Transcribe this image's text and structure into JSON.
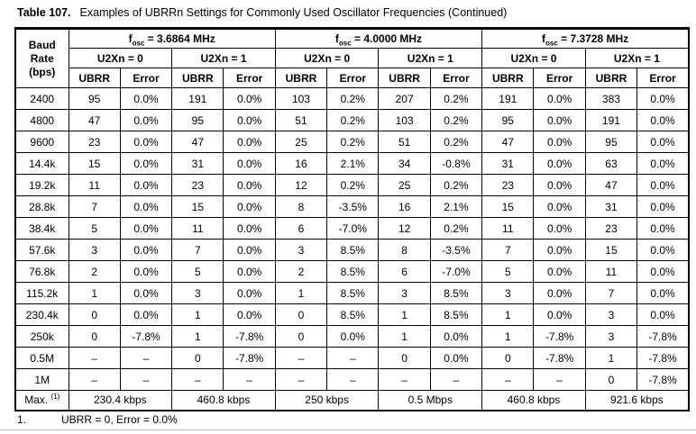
{
  "page": {
    "title_label": "Table 107.",
    "title_caption": "Examples of UBRRn Settings for Commonly Used Oscillator Frequencies (Continued)"
  },
  "table": {
    "baud_header_lines": [
      "Baud",
      "Rate",
      "(bps)"
    ],
    "fosc_groups": [
      {
        "symbol": "f",
        "subscript": "osc",
        "rest": "= 3.6864 MHz"
      },
      {
        "symbol": "f",
        "subscript": "osc",
        "rest": "= 4.0000 MHz"
      },
      {
        "symbol": "f",
        "subscript": "osc",
        "rest": "= 7.3728 MHz"
      }
    ],
    "u2x_labels": [
      "U2Xn = 0",
      "U2Xn = 1"
    ],
    "col_headers": [
      "UBRR",
      "Error"
    ],
    "rows": [
      {
        "baud": "2400",
        "cells": [
          "95",
          "0.0%",
          "191",
          "0.0%",
          "103",
          "0.2%",
          "207",
          "0.2%",
          "191",
          "0.0%",
          "383",
          "0.0%"
        ]
      },
      {
        "baud": "4800",
        "cells": [
          "47",
          "0.0%",
          "95",
          "0.0%",
          "51",
          "0.2%",
          "103",
          "0.2%",
          "95",
          "0.0%",
          "191",
          "0.0%"
        ]
      },
      {
        "baud": "9600",
        "cells": [
          "23",
          "0.0%",
          "47",
          "0.0%",
          "25",
          "0.2%",
          "51",
          "0.2%",
          "47",
          "0.0%",
          "95",
          "0.0%"
        ]
      },
      {
        "baud": "14.4k",
        "cells": [
          "15",
          "0.0%",
          "31",
          "0.0%",
          "16",
          "2.1%",
          "34",
          "-0.8%",
          "31",
          "0.0%",
          "63",
          "0.0%"
        ]
      },
      {
        "baud": "19.2k",
        "cells": [
          "11",
          "0.0%",
          "23",
          "0.0%",
          "12",
          "0.2%",
          "25",
          "0.2%",
          "23",
          "0.0%",
          "47",
          "0.0%"
        ]
      },
      {
        "baud": "28.8k",
        "cells": [
          "7",
          "0.0%",
          "15",
          "0.0%",
          "8",
          "-3.5%",
          "16",
          "2.1%",
          "15",
          "0.0%",
          "31",
          "0.0%"
        ]
      },
      {
        "baud": "38.4k",
        "cells": [
          "5",
          "0.0%",
          "11",
          "0.0%",
          "6",
          "-7.0%",
          "12",
          "0.2%",
          "11",
          "0.0%",
          "23",
          "0.0%"
        ]
      },
      {
        "baud": "57.6k",
        "cells": [
          "3",
          "0.0%",
          "7",
          "0.0%",
          "3",
          "8.5%",
          "8",
          "-3.5%",
          "7",
          "0.0%",
          "15",
          "0.0%"
        ]
      },
      {
        "baud": "76.8k",
        "cells": [
          "2",
          "0.0%",
          "5",
          "0.0%",
          "2",
          "8.5%",
          "6",
          "-7.0%",
          "5",
          "0.0%",
          "11",
          "0.0%"
        ]
      },
      {
        "baud": "115.2k",
        "cells": [
          "1",
          "0.0%",
          "3",
          "0.0%",
          "1",
          "8.5%",
          "3",
          "8.5%",
          "3",
          "0.0%",
          "7",
          "0.0%"
        ]
      },
      {
        "baud": "230.4k",
        "cells": [
          "0",
          "0.0%",
          "1",
          "0.0%",
          "0",
          "8.5%",
          "1",
          "8.5%",
          "1",
          "0.0%",
          "3",
          "0.0%"
        ]
      },
      {
        "baud": "250k",
        "cells": [
          "0",
          "-7.8%",
          "1",
          "-7.8%",
          "0",
          "0.0%",
          "1",
          "0.0%",
          "1",
          "-7.8%",
          "3",
          "-7.8%"
        ]
      },
      {
        "baud": "0.5M",
        "cells": [
          "–",
          "–",
          "0",
          "-7.8%",
          "–",
          "–",
          "0",
          "0.0%",
          "0",
          "-7.8%",
          "1",
          "-7.8%"
        ]
      },
      {
        "baud": "1M",
        "cells": [
          "–",
          "–",
          "–",
          "–",
          "–",
          "–",
          "–",
          "–",
          "–",
          "–",
          "0",
          "-7.8%"
        ]
      }
    ],
    "max_row": {
      "label": "Max. ",
      "superscript": "(1)",
      "values": [
        "230.4 kbps",
        "460.8 kbps",
        "250 kbps",
        "0.5 Mbps",
        "460.8 kbps",
        "921.6 kbps"
      ]
    }
  },
  "footnote": {
    "number": "1.",
    "text": "UBRR = 0, Error = 0.0%"
  }
}
